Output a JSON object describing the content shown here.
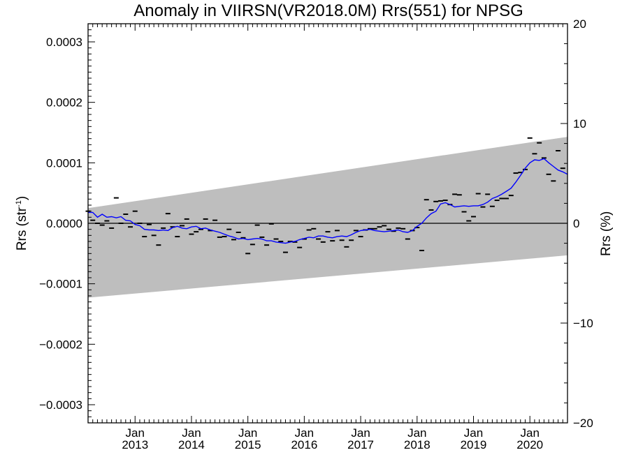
{
  "chart_data": {
    "type": "line",
    "title": "Anomaly in VIIRSN(VR2018.0M) Rrs(551) for NPSG",
    "ylabel_left": "Rrs (str",
    "ylabel_left_sup": "-1",
    "ylabel_left_close": ")",
    "ylabel_right": "Rrs (%)",
    "xlim": [
      "2012-03",
      "2020-09"
    ],
    "ylim_left": [
      -0.00033,
      0.00033
    ],
    "ylim_right": [
      -20,
      20
    ],
    "grid": false,
    "y_ticks_left": [
      {
        "value": 0.0003,
        "label": "0.0003"
      },
      {
        "value": 0.0002,
        "label": "0.0002"
      },
      {
        "value": 0.0001,
        "label": "0.0001"
      },
      {
        "value": 0.0,
        "label": "0.0000"
      },
      {
        "value": -0.0001,
        "label": "−0.0001"
      },
      {
        "value": -0.0002,
        "label": "−0.0002"
      },
      {
        "value": -0.0003,
        "label": "−0.0003"
      }
    ],
    "y_ticks_right": [
      {
        "value": 20,
        "label": "20"
      },
      {
        "value": 10,
        "label": "10"
      },
      {
        "value": 0,
        "label": "0"
      },
      {
        "value": -10,
        "label": "−10"
      },
      {
        "value": -20,
        "label": "−20"
      }
    ],
    "x_ticks": [
      {
        "date": "2013-01",
        "label_top": "Jan",
        "label_bottom": "2013"
      },
      {
        "date": "2014-01",
        "label_top": "Jan",
        "label_bottom": "2014"
      },
      {
        "date": "2015-01",
        "label_top": "Jan",
        "label_bottom": "2015"
      },
      {
        "date": "2016-01",
        "label_top": "Jan",
        "label_bottom": "2016"
      },
      {
        "date": "2017-01",
        "label_top": "Jan",
        "label_bottom": "2017"
      },
      {
        "date": "2018-01",
        "label_top": "Jan",
        "label_bottom": "2018"
      },
      {
        "date": "2019-01",
        "label_top": "Jan",
        "label_bottom": "2019"
      },
      {
        "date": "2020-01",
        "label_top": "Jan",
        "label_bottom": "2020"
      }
    ],
    "band": {
      "color": "#bebebe",
      "start": {
        "date": "2012-03",
        "upper": 2.5e-05,
        "lower": -0.000123
      },
      "end": {
        "date": "2020-09",
        "upper": 0.000143,
        "lower": -5.3e-05
      }
    },
    "zero_line": 0.0,
    "monthly_anomalies": {
      "color": "#000000",
      "points": [
        [
          "2012-03",
          2e-05
        ],
        [
          "2012-04",
          5e-06
        ],
        [
          "2012-05",
          0.0
        ],
        [
          "2012-06",
          -3e-06
        ],
        [
          "2012-07",
          4e-06
        ],
        [
          "2012-08",
          -8e-06
        ],
        [
          "2012-09",
          4.2e-05
        ],
        [
          "2012-10",
          0.0
        ],
        [
          "2012-11",
          1.5e-05
        ],
        [
          "2012-12",
          -6e-06
        ],
        [
          "2013-01",
          2e-05
        ],
        [
          "2013-02",
          0.0
        ],
        [
          "2013-03",
          -2.2e-05
        ],
        [
          "2013-04",
          -2e-06
        ],
        [
          "2013-05",
          -2e-05
        ],
        [
          "2013-06",
          -3.6e-05
        ],
        [
          "2013-07",
          -8e-06
        ],
        [
          "2013-08",
          1.6e-05
        ],
        [
          "2013-09",
          -6e-06
        ],
        [
          "2013-10",
          -2.2e-05
        ],
        [
          "2013-11",
          -4e-06
        ],
        [
          "2013-12",
          7e-06
        ],
        [
          "2014-01",
          -1.8e-05
        ],
        [
          "2014-02",
          -1.4e-05
        ],
        [
          "2014-03",
          -1e-05
        ],
        [
          "2014-04",
          7e-06
        ],
        [
          "2014-05",
          -1.2e-05
        ],
        [
          "2014-06",
          5e-06
        ],
        [
          "2014-07",
          -2.3e-05
        ],
        [
          "2014-08",
          -2.2e-05
        ],
        [
          "2014-09",
          -1e-05
        ],
        [
          "2014-10",
          -2.7e-05
        ],
        [
          "2014-11",
          -1.5e-05
        ],
        [
          "2014-12",
          -2.4e-05
        ],
        [
          "2015-01",
          -5e-05
        ],
        [
          "2015-02",
          -3.5e-05
        ],
        [
          "2015-03",
          -3e-06
        ],
        [
          "2015-04",
          -2.3e-05
        ],
        [
          "2015-05",
          -3.6e-05
        ],
        [
          "2015-06",
          -1e-06
        ],
        [
          "2015-07",
          -2.6e-05
        ],
        [
          "2015-08",
          -3e-05
        ],
        [
          "2015-09",
          -4.8e-05
        ],
        [
          "2015-10",
          -3e-05
        ],
        [
          "2015-11",
          -3.1e-05
        ],
        [
          "2015-12",
          -4e-05
        ],
        [
          "2016-01",
          -2.6e-05
        ],
        [
          "2016-02",
          -1.1e-05
        ],
        [
          "2016-03",
          -9e-06
        ],
        [
          "2016-04",
          -2.6e-05
        ],
        [
          "2016-05",
          -3.1e-05
        ],
        [
          "2016-06",
          -1.4e-05
        ],
        [
          "2016-07",
          -2.9e-05
        ],
        [
          "2016-08",
          -1.2e-05
        ],
        [
          "2016-09",
          -2.8e-05
        ],
        [
          "2016-10",
          -3.9e-05
        ],
        [
          "2016-11",
          -2.8e-05
        ],
        [
          "2016-12",
          -1.2e-05
        ],
        [
          "2017-01",
          -2.2e-05
        ],
        [
          "2017-02",
          -1.1e-05
        ],
        [
          "2017-03",
          -9e-06
        ],
        [
          "2017-04",
          -9e-06
        ],
        [
          "2017-05",
          -6e-06
        ],
        [
          "2017-06",
          -4e-06
        ],
        [
          "2017-07",
          -1e-05
        ],
        [
          "2017-08",
          -1.3e-05
        ],
        [
          "2017-09",
          -8e-06
        ],
        [
          "2017-10",
          -9e-06
        ],
        [
          "2017-11",
          -2.6e-05
        ],
        [
          "2017-12",
          -1.2e-05
        ],
        [
          "2018-01",
          -7e-06
        ],
        [
          "2018-02",
          -4.5e-05
        ],
        [
          "2018-03",
          3.9e-05
        ],
        [
          "2018-04",
          2.2e-05
        ],
        [
          "2018-05",
          3.6e-05
        ],
        [
          "2018-06",
          3.7e-05
        ],
        [
          "2018-07",
          3.8e-05
        ],
        [
          "2018-08",
          3.1e-05
        ],
        [
          "2018-09",
          4.8e-05
        ],
        [
          "2018-10",
          4.7e-05
        ],
        [
          "2018-11",
          1.9e-05
        ],
        [
          "2018-12",
          4e-06
        ],
        [
          "2019-01",
          1.1e-05
        ],
        [
          "2019-02",
          4.9e-05
        ],
        [
          "2019-03",
          2.7e-05
        ],
        [
          "2019-04",
          4.8e-05
        ],
        [
          "2019-05",
          2.8e-05
        ],
        [
          "2019-06",
          3.8e-05
        ],
        [
          "2019-07",
          4.1e-05
        ],
        [
          "2019-08",
          4.1e-05
        ],
        [
          "2019-09",
          4.6e-05
        ],
        [
          "2019-10",
          8.3e-05
        ],
        [
          "2019-11",
          8.4e-05
        ],
        [
          "2019-12",
          8.9e-05
        ],
        [
          "2020-01",
          0.000141
        ],
        [
          "2020-02",
          0.000115
        ],
        [
          "2020-03",
          0.000133
        ],
        [
          "2020-04",
          0.000108
        ],
        [
          "2020-05",
          8.1e-05
        ],
        [
          "2020-06",
          7e-05
        ],
        [
          "2020-07",
          0.00012
        ],
        [
          "2020-08",
          9.1e-05
        ]
      ]
    },
    "running_mean": {
      "color": "#0000ff",
      "points": [
        [
          "2012-03",
          1.8e-05
        ],
        [
          "2012-04",
          1.8e-05
        ],
        [
          "2012-05",
          1e-05
        ],
        [
          "2012-06",
          1.5e-05
        ],
        [
          "2012-07",
          1e-05
        ],
        [
          "2012-08",
          1.1e-05
        ],
        [
          "2012-09",
          9e-06
        ],
        [
          "2012-10",
          1.1e-05
        ],
        [
          "2012-11",
          5e-06
        ],
        [
          "2012-12",
          4e-06
        ],
        [
          "2013-01",
          -2e-06
        ],
        [
          "2013-02",
          -4e-06
        ],
        [
          "2013-03",
          -1e-05
        ],
        [
          "2013-04",
          -1.1e-05
        ],
        [
          "2013-05",
          -1.1e-05
        ],
        [
          "2013-06",
          -1.2e-05
        ],
        [
          "2013-07",
          -1.1e-05
        ],
        [
          "2013-08",
          -1.2e-05
        ],
        [
          "2013-09",
          -7e-06
        ],
        [
          "2013-10",
          -5e-06
        ],
        [
          "2013-11",
          -8e-06
        ],
        [
          "2013-12",
          -9e-06
        ],
        [
          "2014-01",
          -6e-06
        ],
        [
          "2014-02",
          -5e-06
        ],
        [
          "2014-03",
          -9e-06
        ],
        [
          "2014-04",
          -8e-06
        ],
        [
          "2014-05",
          -1.1e-05
        ],
        [
          "2014-06",
          -1.3e-05
        ],
        [
          "2014-07",
          -1.5e-05
        ],
        [
          "2014-08",
          -1.8e-05
        ],
        [
          "2014-09",
          -2.1e-05
        ],
        [
          "2014-10",
          -2.3e-05
        ],
        [
          "2014-11",
          -2.6e-05
        ],
        [
          "2014-12",
          -2.5e-05
        ],
        [
          "2015-01",
          -2.7e-05
        ],
        [
          "2015-02",
          -2.6e-05
        ],
        [
          "2015-03",
          -2.5e-05
        ],
        [
          "2015-04",
          -2.6e-05
        ],
        [
          "2015-05",
          -2.9e-05
        ],
        [
          "2015-06",
          -2.9e-05
        ],
        [
          "2015-07",
          -3.1e-05
        ],
        [
          "2015-08",
          -3.2e-05
        ],
        [
          "2015-09",
          -3.3e-05
        ],
        [
          "2015-10",
          -3.1e-05
        ],
        [
          "2015-11",
          -3e-05
        ],
        [
          "2015-12",
          -2.7e-05
        ],
        [
          "2016-01",
          -2.5e-05
        ],
        [
          "2016-02",
          -2.3e-05
        ],
        [
          "2016-03",
          -2.4e-05
        ],
        [
          "2016-04",
          -2.1e-05
        ],
        [
          "2016-05",
          -2.1e-05
        ],
        [
          "2016-06",
          -2.3e-05
        ],
        [
          "2016-07",
          -2.4e-05
        ],
        [
          "2016-08",
          -2.2e-05
        ],
        [
          "2016-09",
          -2.1e-05
        ],
        [
          "2016-10",
          -2.2e-05
        ],
        [
          "2016-11",
          -1.9e-05
        ],
        [
          "2016-12",
          -1.5e-05
        ],
        [
          "2017-01",
          -1.2e-05
        ],
        [
          "2017-02",
          -1.1e-05
        ],
        [
          "2017-03",
          -1e-05
        ],
        [
          "2017-04",
          -1.2e-05
        ],
        [
          "2017-05",
          -1.3e-05
        ],
        [
          "2017-06",
          -1.4e-05
        ],
        [
          "2017-07",
          -1.3e-05
        ],
        [
          "2017-08",
          -1.2e-05
        ],
        [
          "2017-09",
          -1.1e-05
        ],
        [
          "2017-10",
          -1.4e-05
        ],
        [
          "2017-11",
          -1.5e-05
        ],
        [
          "2017-12",
          -1.2e-05
        ],
        [
          "2018-01",
          -5e-06
        ],
        [
          "2018-02",
          0.0
        ],
        [
          "2018-03",
          9e-06
        ],
        [
          "2018-04",
          1.6e-05
        ],
        [
          "2018-05",
          2e-05
        ],
        [
          "2018-06",
          3.2e-05
        ],
        [
          "2018-07",
          3.4e-05
        ],
        [
          "2018-08",
          3.1e-05
        ],
        [
          "2018-09",
          2.7e-05
        ],
        [
          "2018-10",
          2.8e-05
        ],
        [
          "2018-11",
          2.9e-05
        ],
        [
          "2018-12",
          2.8e-05
        ],
        [
          "2019-01",
          2.9e-05
        ],
        [
          "2019-02",
          2.9e-05
        ],
        [
          "2019-03",
          3.1e-05
        ],
        [
          "2019-04",
          3.5e-05
        ],
        [
          "2019-05",
          4.1e-05
        ],
        [
          "2019-06",
          4.4e-05
        ],
        [
          "2019-07",
          4.8e-05
        ],
        [
          "2019-08",
          5.3e-05
        ],
        [
          "2019-09",
          5.8e-05
        ],
        [
          "2019-10",
          6.8e-05
        ],
        [
          "2019-11",
          7.9e-05
        ],
        [
          "2019-12",
          9.1e-05
        ],
        [
          "2020-01",
          0.0001
        ],
        [
          "2020-02",
          0.000105
        ],
        [
          "2020-03",
          0.000104
        ],
        [
          "2020-04",
          0.000107
        ],
        [
          "2020-05",
          0.0001
        ],
        [
          "2020-06",
          9.4e-05
        ],
        [
          "2020-07",
          8.8e-05
        ],
        [
          "2020-08",
          8.5e-05
        ],
        [
          "2020-09",
          8.1e-05
        ]
      ]
    }
  }
}
